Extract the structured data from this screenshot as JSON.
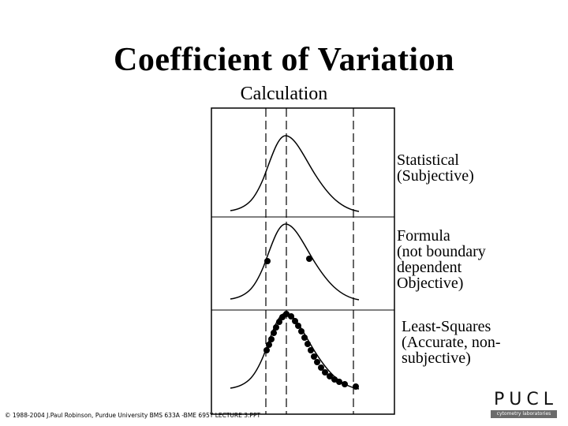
{
  "slide": {
    "title": "Coefficient of Variation",
    "subtitle": "Calculation",
    "footer": "© 1988-2004 J.Paul Robinson, Purdue University  BMS 633A -BME 695Y  LECTURE 3.PPT"
  },
  "panels": [
    {
      "label_lines": [
        "Statistical",
        "(Subjective)"
      ]
    },
    {
      "label_lines": [
        "Formula",
        "(not boundary",
        "dependent",
        "Objective)"
      ]
    },
    {
      "label_lines": [
        "Least-Squares",
        "(Accurate, non-",
        "subjective)"
      ]
    }
  ],
  "logo": {
    "letters": "PUCL",
    "subtitle": "cytometry laboratories"
  }
}
